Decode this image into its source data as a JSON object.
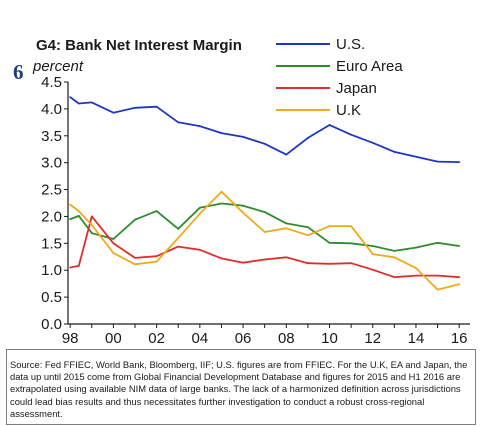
{
  "figure": {
    "number": "6",
    "title": "G4: Bank Net Interest Margin",
    "unit": "percent"
  },
  "chart_data": {
    "type": "line",
    "title": "G4: Bank Net Interest Margin",
    "ylabel": "percent",
    "xlabel": "",
    "ylim": [
      0,
      4.5
    ],
    "y_ticks": [
      "0.0",
      "0.5",
      "1.0",
      "1.5",
      "2.0",
      "2.5",
      "3.0",
      "3.5",
      "4.0",
      "4.5"
    ],
    "x_ticks": [
      "98",
      "00",
      "02",
      "04",
      "06",
      "08",
      "10",
      "12",
      "14",
      "16"
    ],
    "x_tick_values": [
      1998,
      2000,
      2002,
      2004,
      2006,
      2008,
      2010,
      2012,
      2014,
      2016
    ],
    "xlim": [
      1997.9,
      2016.5
    ],
    "grid": false,
    "legend_position": "top-right",
    "series": [
      {
        "name": "U.S.",
        "color": "#1f35c4",
        "x": [
          1998,
          1998.4,
          1999,
          2000,
          2001,
          2002,
          2003,
          2004,
          2005,
          2006,
          2007,
          2008,
          2009,
          2010,
          2011,
          2012,
          2013,
          2014,
          2015,
          2016
        ],
        "values": [
          4.22,
          4.1,
          4.12,
          3.93,
          4.02,
          4.04,
          3.75,
          3.68,
          3.55,
          3.48,
          3.35,
          3.15,
          3.46,
          3.7,
          3.52,
          3.37,
          3.2,
          3.11,
          3.02,
          3.01
        ]
      },
      {
        "name": "Euro Area",
        "color": "#2e8b2e",
        "x": [
          1998,
          1998.4,
          1999,
          2000,
          2001,
          2002,
          2003,
          2004,
          2005,
          2006,
          2007,
          2008,
          2009,
          2010,
          2011,
          2012,
          2013,
          2014,
          2015,
          2016
        ],
        "values": [
          1.95,
          2.01,
          1.69,
          1.58,
          1.94,
          2.1,
          1.77,
          2.16,
          2.24,
          2.2,
          2.08,
          1.87,
          1.8,
          1.51,
          1.5,
          1.45,
          1.36,
          1.42,
          1.51,
          1.45
        ]
      },
      {
        "name": "Japan",
        "color": "#e02d2d",
        "x": [
          1998,
          1998.4,
          1999,
          2000,
          2001,
          2002,
          2003,
          2004,
          2005,
          2006,
          2007,
          2008,
          2009,
          2010,
          2011,
          2012,
          2013,
          2014,
          2015,
          2016
        ],
        "values": [
          1.05,
          1.08,
          2.0,
          1.5,
          1.23,
          1.26,
          1.44,
          1.38,
          1.22,
          1.14,
          1.2,
          1.24,
          1.13,
          1.12,
          1.13,
          1.01,
          0.87,
          0.9,
          0.9,
          0.87
        ]
      },
      {
        "name": "U.K",
        "color": "#f2a81d",
        "x": [
          1998,
          1998.4,
          1999,
          2000,
          2001,
          2002,
          2003,
          2004,
          2005,
          2006,
          2007,
          2008,
          2009,
          2010,
          2011,
          2012,
          2013,
          2014,
          2015,
          2016
        ],
        "values": [
          2.22,
          2.1,
          1.84,
          1.32,
          1.11,
          1.16,
          1.6,
          2.05,
          2.46,
          2.07,
          1.71,
          1.78,
          1.65,
          1.82,
          1.82,
          1.3,
          1.24,
          1.04,
          0.64,
          0.74
        ]
      }
    ]
  },
  "source_note": "Source: Fed FFIEC, World Bank, Bloomberg, IIF; U.S. figures are from FFIEC. For the U.K, EA and Japan,  the data up until 2015 come from Global Financial Development Database and figures for 2015 and H1 2016 are extrapolated using available NIM data of large banks. The lack of a harmonized definition across jurisdictions could lead bias results and thus necessitates further investigation to conduct a robust cross-regional assessment."
}
